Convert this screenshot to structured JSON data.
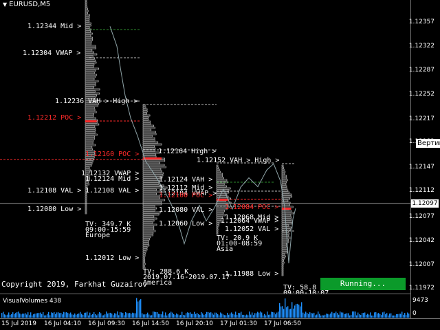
{
  "window": {
    "symbol_title": "EURUSD,M5"
  },
  "price_axis": [
    "1.12357",
    "1.12322",
    "1.12287",
    "1.12252",
    "1.12217",
    "1.12182",
    "1.12147",
    "1.12112",
    "1.12077",
    "1.12042",
    "1.12007",
    "1.11972"
  ],
  "current_price": "1.12097",
  "tooltip": "Вертик",
  "sessions": [
    {
      "name": "Europe",
      "tv": "TV: 349.7 K",
      "time": "09:00-15:59",
      "levels": [
        {
          "label": "1.12344 Mid >",
          "kind": "mid"
        },
        {
          "label": "1.12304 VWAP >",
          "kind": "vwap"
        },
        {
          "label": "1.12236 VAH > High >",
          "kind": "vah"
        },
        {
          "label": "1.12212 POC >",
          "kind": "poc"
        },
        {
          "label": "1.12108 VAL >",
          "kind": "val"
        },
        {
          "label": "1.12080 Low >",
          "kind": "low"
        }
      ]
    },
    {
      "name": "America",
      "tv": "TV: 288.6 K",
      "time": "2019.07.16-2019.07.17",
      "levels": [
        {
          "label": "1.12164 High >",
          "kind": "high"
        },
        {
          "label": "1.12160 POC >",
          "kind": "poc"
        },
        {
          "label": "1.12132 VWAP >",
          "kind": "vwap"
        },
        {
          "label": "1.12124 Mid >",
          "kind": "mid"
        },
        {
          "label": "1.12108 VAL >",
          "kind": "val"
        },
        {
          "label": "1.12012 Low >",
          "kind": "low"
        }
      ]
    },
    {
      "name": "Asia",
      "tv": "TV: 20.9 K",
      "time": "01:00-08:59",
      "levels": [
        {
          "label": "1.12152 VAH > High >",
          "kind": "vah"
        },
        {
          "label": "1.12124 VAH >",
          "kind": "vah"
        },
        {
          "label": "1.12112 Mid >",
          "kind": "mid"
        },
        {
          "label": "1.12104 VWAP >",
          "kind": "vwap"
        },
        {
          "label": "1.12100 POC >",
          "kind": "poc"
        },
        {
          "label": "1.12080 VAL >",
          "kind": "val"
        },
        {
          "label": "1.12060 Low >",
          "kind": "low"
        }
      ]
    },
    {
      "name": "Latest",
      "tv": "TV: 58.8 K",
      "time": "09:00-10:07",
      "levels": [
        {
          "label": "1.12084 POC >",
          "kind": "poc"
        },
        {
          "label": "1.12068 Mid >",
          "kind": "mid"
        },
        {
          "label": "1.12064 VWAP >",
          "kind": "vwap"
        },
        {
          "label": "1.12052 VAL >",
          "kind": "val"
        },
        {
          "label": "1.11988 Low >",
          "kind": "low"
        }
      ]
    }
  ],
  "status_button": "Running...",
  "copyright": "Copyright 2019, Farkhat Guzairov",
  "indicator": {
    "title": "VisualVolumes 438",
    "max": "9473",
    "min": "0"
  },
  "time_axis": [
    "15 Jul 2019",
    "16 Jul 04:10",
    "16 Jul 09:30",
    "16 Jul 14:50",
    "16 Jul 20:10",
    "17 Jul 01:30",
    "17 Jul 06:50"
  ],
  "colors": {
    "poc": "#ff2a2a",
    "running": "#0b9a2a",
    "volume_bars": "#1e90ff",
    "mid_line": "#2e8b2e"
  },
  "icons": {
    "title_menu": "triangle-down-icon"
  }
}
